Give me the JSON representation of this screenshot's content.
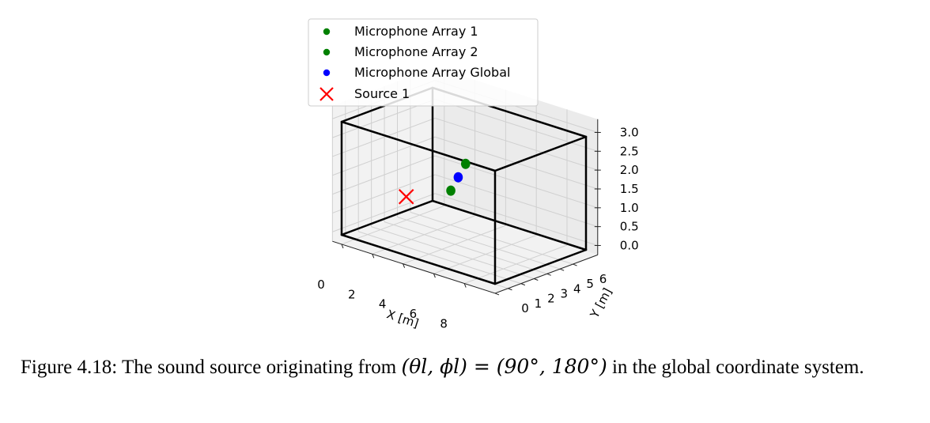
{
  "chart_data": {
    "type": "scatter3d",
    "room": {
      "x": [
        0,
        10
      ],
      "y": [
        0,
        7
      ],
      "z": [
        0,
        3
      ]
    },
    "xlabel": "X [m]",
    "ylabel": "Y [m]",
    "x_ticks": [
      "0",
      "2",
      "4",
      "6",
      "8"
    ],
    "y_ticks": [
      "0",
      "1",
      "2",
      "3",
      "4",
      "5",
      "6"
    ],
    "z_ticks": [
      "0.0",
      "0.5",
      "1.0",
      "1.5",
      "2.0",
      "2.5",
      "3.0"
    ],
    "legend_position": "top",
    "series": [
      {
        "name": "Microphone Array 1",
        "marker": "dot",
        "color": "#008000",
        "points": [
          [
            5,
            2.5,
            1.5
          ]
        ]
      },
      {
        "name": "Microphone Array 2",
        "marker": "dot",
        "color": "#008000",
        "points": [
          [
            3,
            6,
            1.5
          ]
        ]
      },
      {
        "name": "Microphone Array Global",
        "marker": "dot",
        "color": "#0000ff",
        "points": [
          [
            4,
            4.25,
            1.5
          ]
        ]
      },
      {
        "name": "Source 1",
        "marker": "x",
        "color": "#ff0000",
        "points": [
          [
            4,
            0.25,
            1.5
          ]
        ]
      }
    ]
  },
  "caption": {
    "label": "Figure 4.18:",
    "text_before": "The sound source originating from",
    "math": "(θl, ϕl) = (90°, 180°)",
    "text_after": "in the global coordinate system."
  }
}
